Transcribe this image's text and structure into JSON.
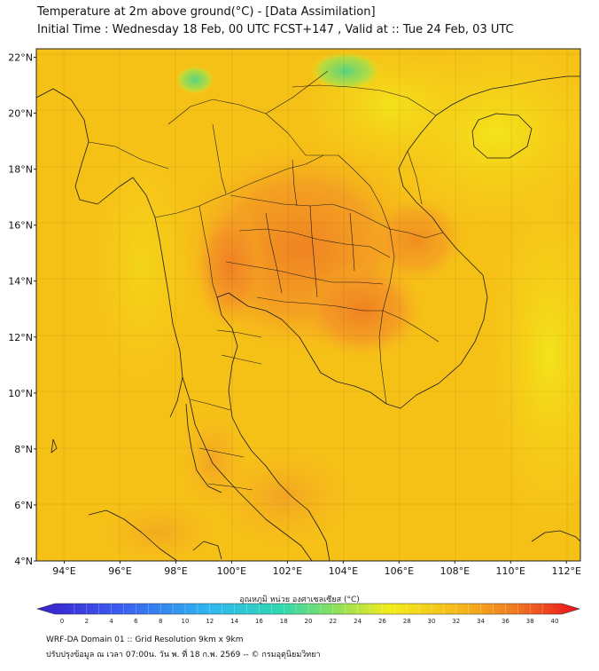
{
  "header": {
    "title_line1": "Temperature at 2m above ground(°C) - [Data Assimilation]",
    "title_line2": "Initial Time : Wednesday 18 Feb, 00 UTC FCST+147 , Valid at :: Tue 24 Feb, 03 UTC"
  },
  "map": {
    "lon_range": [
      93,
      112.5
    ],
    "lat_range": [
      4,
      22.3
    ],
    "lat_ticks": [
      "22°N",
      "20°N",
      "18°N",
      "16°N",
      "14°N",
      "12°N",
      "10°N",
      "8°N",
      "6°N",
      "4°N"
    ],
    "lon_ticks": [
      "94°E",
      "96°E",
      "98°E",
      "100°E",
      "102°E",
      "104°E",
      "106°E",
      "108°E",
      "110°E",
      "112°E"
    ],
    "ocean_color": "#f6c117",
    "hot_color": "#f08a24",
    "cool_color": "#54d47f"
  },
  "colorbar": {
    "label": "อุณหภูมิ หน่วย องศาเซลเซียส (°C)",
    "ticks": [
      "0",
      "2",
      "4",
      "6",
      "8",
      "10",
      "12",
      "14",
      "16",
      "18",
      "20",
      "22",
      "24",
      "26",
      "28",
      "30",
      "32",
      "34",
      "36",
      "38",
      "40"
    ]
  },
  "footer": {
    "line1": "WRF-DA Domain 01 :: Grid Resolution 9km x 9km",
    "line2": "ปรับปรุงข้อมูล ณ เวลา 07:00น. วัน พ. ที่ 18 ก.พ. 2569 -- © กรมอุตุนิยมวิทยา"
  }
}
